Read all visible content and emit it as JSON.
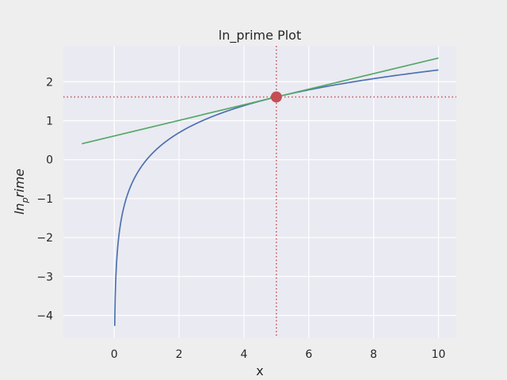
{
  "chart_data": {
    "type": "line",
    "title": "ln_prime Plot",
    "xlabel": "x",
    "ylabel": "ln",
    "ylabel_subscript": "p",
    "ylabel_suffix": "rime",
    "xlim": [
      -1.57,
      10.55
    ],
    "ylim": [
      -4.58,
      2.92
    ],
    "xticks": [
      0,
      2,
      4,
      6,
      8,
      10
    ],
    "yticks": [
      -4,
      -3,
      -2,
      -1,
      0,
      1,
      2
    ],
    "grid": true,
    "series": [
      {
        "kind": "curve",
        "function": "ln(x)",
        "x_range": [
          0.014,
          10
        ],
        "color": "#4c72b0"
      },
      {
        "kind": "tangent",
        "x": [
          -1,
          10
        ],
        "y": [
          0.409,
          2.609
        ],
        "color": "#55a868"
      }
    ],
    "point": {
      "x": 5,
      "y": 1.609,
      "color": "#c44e52"
    },
    "reference_lines": {
      "vertical_x": 5,
      "horizontal_y": 1.609,
      "color": "#c44e52",
      "style": "dotted"
    },
    "colors": {
      "plot_background": "#eaeaf2",
      "figure_background": "#eeeeee",
      "grid": "#ffffff"
    }
  }
}
